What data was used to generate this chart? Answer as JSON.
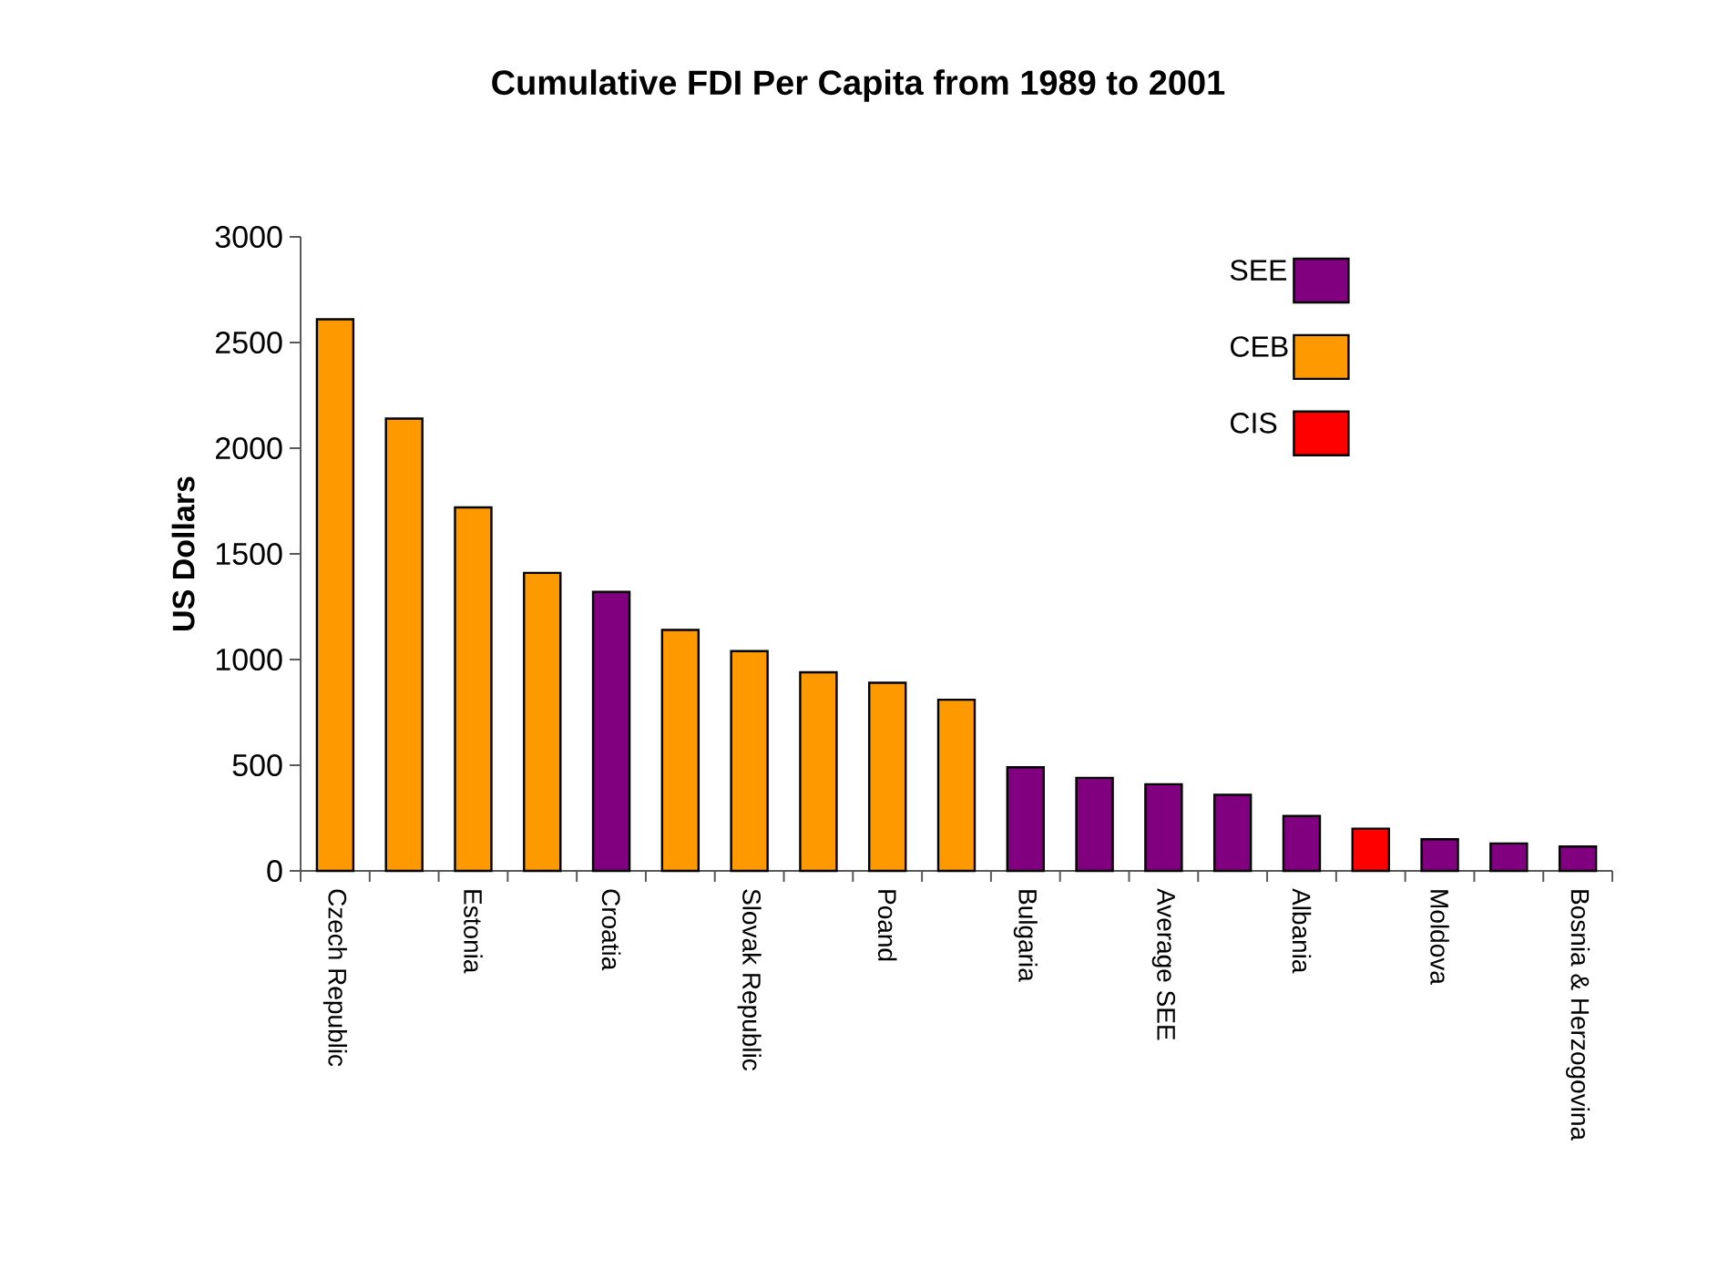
{
  "chart_data": {
    "type": "bar",
    "title": "Cumulative FDI Per Capita from 1989 to 2001",
    "ylabel": "US Dollars",
    "categories": [
      "Czech Republic",
      null,
      "Estonia",
      null,
      "Croatia",
      null,
      "Slovak Republic",
      null,
      "Poand",
      null,
      "Bulgaria",
      null,
      "Average SEE",
      null,
      "Albania",
      null,
      "Moldova",
      null,
      "Bosnia & Herzogovina"
    ],
    "series": [
      {
        "name": "SEE",
        "color": "#800080",
        "values": [
          null,
          null,
          null,
          null,
          1320,
          null,
          null,
          null,
          null,
          null,
          490,
          440,
          410,
          360,
          260,
          null,
          150,
          130,
          115
        ]
      },
      {
        "name": "CEB",
        "color": "#ff9900",
        "values": [
          2610,
          2140,
          1720,
          1410,
          null,
          1140,
          1040,
          940,
          890,
          810,
          null,
          null,
          null,
          null,
          null,
          null,
          null,
          null,
          null
        ]
      },
      {
        "name": "CIS",
        "color": "#ff0000",
        "values": [
          null,
          null,
          null,
          null,
          null,
          null,
          null,
          null,
          null,
          null,
          null,
          null,
          null,
          null,
          null,
          200,
          null,
          null,
          null
        ]
      }
    ],
    "ylim": [
      0,
      3000
    ],
    "yticks": [
      0,
      500,
      1000,
      1500,
      2000,
      2500,
      3000
    ],
    "legend": "top right"
  }
}
